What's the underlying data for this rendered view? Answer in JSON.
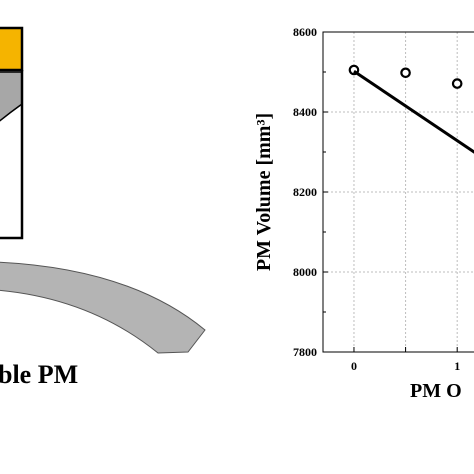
{
  "left_panel": {
    "caption": "ble PM",
    "colors": {
      "magnet": "#f5b400",
      "steel": "#a7a7a7",
      "outline": "#000000"
    }
  },
  "chart_data": {
    "type": "scatter",
    "ylabel": "PM Volume [mm³]",
    "xlabel": "PM O",
    "xlim": [
      -0.3,
      1.25
    ],
    "ylim": [
      7800,
      8600
    ],
    "x_ticks": [
      0,
      0.5,
      1
    ],
    "x_tick_labels": [
      "0",
      "",
      "1"
    ],
    "y_ticks": [
      7800,
      8000,
      8200,
      8400,
      8600
    ],
    "y_tick_labels": [
      "7800",
      "8000",
      "8200",
      "8400",
      "8600"
    ],
    "grid": true,
    "series": [
      {
        "marker": "open-circle",
        "x": [
          0,
          0.5,
          1
        ],
        "y": [
          8505,
          8498,
          8471
        ]
      },
      {
        "line": "solid",
        "x": [
          0,
          1.25
        ],
        "y": [
          8502,
          8285
        ]
      }
    ]
  }
}
